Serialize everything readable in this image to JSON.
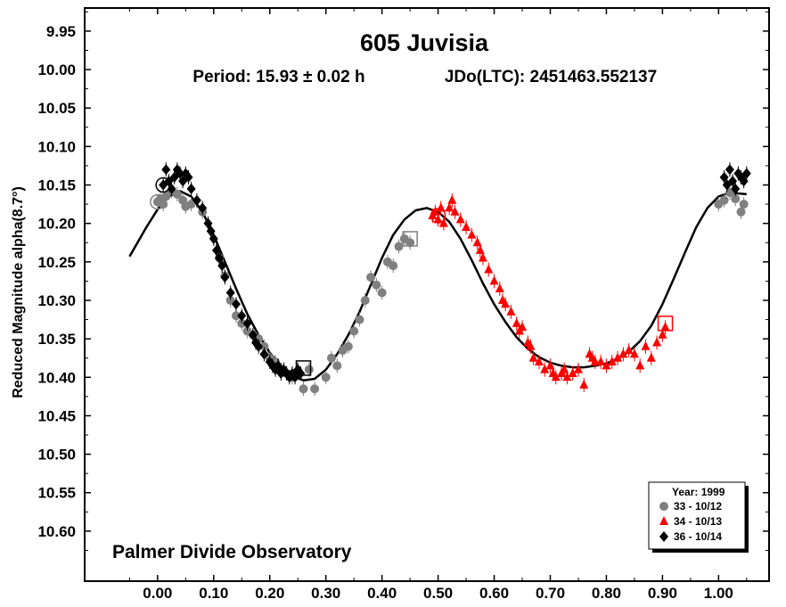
{
  "chart_data": {
    "type": "scatter",
    "title": "605 Juvisia",
    "subtitle_period": "Period: 15.93 ± 0.02 h",
    "subtitle_epoch": "JDo(LTC): 2451463.552137",
    "ylabel": "Reduced Magnitude alpha(8.7°)",
    "annotation": "Palmer Divide Observatory",
    "xlim": [
      -0.13,
      1.09
    ],
    "ylim": [
      9.92,
      10.665
    ],
    "y_inverted": true,
    "grid": false,
    "legend_placement": "bottom-right",
    "legend_title": "Year: 1999",
    "x_ticks": [
      "0.00",
      "0.10",
      "0.20",
      "0.30",
      "0.40",
      "0.50",
      "0.60",
      "0.70",
      "0.80",
      "0.90",
      "1.00"
    ],
    "x_tick_values": [
      0.0,
      0.1,
      0.2,
      0.3,
      0.4,
      0.5,
      0.6,
      0.7,
      0.8,
      0.9,
      1.0
    ],
    "y_ticks": [
      "9.95",
      "10.00",
      "10.05",
      "10.10",
      "10.15",
      "10.20",
      "10.25",
      "10.30",
      "10.35",
      "10.40",
      "10.45",
      "10.50",
      "10.55",
      "10.60"
    ],
    "y_tick_values": [
      9.95,
      10.0,
      10.05,
      10.1,
      10.15,
      10.2,
      10.25,
      10.3,
      10.35,
      10.4,
      10.45,
      10.5,
      10.55,
      10.6
    ],
    "fit_curve": {
      "x": [
        -0.05,
        -0.02,
        0.0,
        0.02,
        0.04,
        0.06,
        0.08,
        0.1,
        0.12,
        0.14,
        0.16,
        0.18,
        0.2,
        0.22,
        0.24,
        0.26,
        0.28,
        0.3,
        0.32,
        0.34,
        0.36,
        0.38,
        0.4,
        0.42,
        0.44,
        0.46,
        0.48,
        0.5,
        0.52,
        0.54,
        0.56,
        0.58,
        0.6,
        0.62,
        0.64,
        0.66,
        0.68,
        0.7,
        0.72,
        0.74,
        0.76,
        0.78,
        0.8,
        0.82,
        0.84,
        0.86,
        0.88,
        0.9,
        0.92,
        0.94,
        0.96,
        0.98,
        1.0,
        1.02,
        1.05
      ],
      "y": [
        10.243,
        10.205,
        10.182,
        10.165,
        10.158,
        10.165,
        10.185,
        10.215,
        10.25,
        10.285,
        10.318,
        10.345,
        10.368,
        10.385,
        10.398,
        10.404,
        10.402,
        10.39,
        10.37,
        10.345,
        10.315,
        10.28,
        10.245,
        10.215,
        10.195,
        10.183,
        10.18,
        10.185,
        10.198,
        10.22,
        10.248,
        10.278,
        10.305,
        10.328,
        10.348,
        10.363,
        10.374,
        10.381,
        10.385,
        10.387,
        10.387,
        10.385,
        10.382,
        10.376,
        10.367,
        10.353,
        10.333,
        10.305,
        10.272,
        10.238,
        10.205,
        10.18,
        10.165,
        10.16,
        10.162
      ]
    },
    "series": [
      {
        "name": "33 - 10/12",
        "color": "#808080",
        "marker": "circle",
        "x": [
          0.0,
          0.005,
          0.01,
          0.015,
          0.025,
          0.035,
          0.045,
          0.05,
          0.06,
          0.08,
          0.11,
          0.12,
          0.13,
          0.14,
          0.15,
          0.16,
          0.17,
          0.18,
          0.19,
          0.2,
          0.21,
          0.22,
          0.23,
          0.24,
          0.25,
          0.26,
          0.27,
          0.28,
          0.3,
          0.31,
          0.32,
          0.33,
          0.34,
          0.35,
          0.36,
          0.37,
          0.38,
          0.39,
          0.4,
          0.41,
          0.42,
          0.43,
          0.44,
          0.45,
          1.0,
          1.01,
          1.02,
          1.03,
          1.04,
          1.045
        ],
        "y": [
          10.172,
          10.168,
          10.175,
          10.165,
          10.158,
          10.162,
          10.17,
          10.178,
          10.175,
          10.185,
          10.245,
          10.268,
          10.3,
          10.32,
          10.33,
          10.34,
          10.345,
          10.35,
          10.36,
          10.375,
          10.38,
          10.39,
          10.395,
          10.4,
          10.395,
          10.415,
          10.39,
          10.415,
          10.4,
          10.375,
          10.385,
          10.365,
          10.36,
          10.34,
          10.325,
          10.3,
          10.27,
          10.28,
          10.29,
          10.25,
          10.255,
          10.23,
          10.22,
          10.225,
          10.175,
          10.17,
          10.16,
          10.168,
          10.185,
          10.175
        ]
      },
      {
        "name": "34 - 10/13",
        "color": "#ff0000",
        "marker": "triangle",
        "x": [
          0.49,
          0.495,
          0.5,
          0.505,
          0.51,
          0.52,
          0.525,
          0.53,
          0.54,
          0.55,
          0.56,
          0.57,
          0.575,
          0.58,
          0.59,
          0.6,
          0.61,
          0.615,
          0.62,
          0.63,
          0.64,
          0.645,
          0.65,
          0.66,
          0.665,
          0.67,
          0.68,
          0.69,
          0.7,
          0.705,
          0.71,
          0.72,
          0.725,
          0.73,
          0.74,
          0.75,
          0.76,
          0.77,
          0.775,
          0.78,
          0.79,
          0.8,
          0.81,
          0.82,
          0.83,
          0.84,
          0.85,
          0.86,
          0.87,
          0.88,
          0.89,
          0.9,
          0.905
        ],
        "y": [
          10.19,
          10.185,
          10.195,
          10.18,
          10.2,
          10.18,
          10.17,
          10.185,
          10.195,
          10.205,
          10.215,
          10.225,
          10.235,
          10.245,
          10.26,
          10.275,
          10.285,
          10.3,
          10.305,
          10.315,
          10.33,
          10.34,
          10.335,
          10.355,
          10.36,
          10.375,
          10.38,
          10.39,
          10.385,
          10.395,
          10.4,
          10.395,
          10.39,
          10.4,
          10.395,
          10.39,
          10.41,
          10.37,
          10.375,
          10.38,
          10.38,
          10.385,
          10.38,
          10.375,
          10.37,
          10.365,
          10.37,
          10.385,
          10.36,
          10.375,
          10.355,
          10.345,
          10.335
        ]
      },
      {
        "name": "36 - 10/14",
        "color": "#000000",
        "marker": "diamond",
        "x": [
          0.01,
          0.015,
          0.02,
          0.025,
          0.03,
          0.035,
          0.04,
          0.045,
          0.05,
          0.055,
          0.06,
          0.07,
          0.08,
          0.09,
          0.095,
          0.1,
          0.105,
          0.11,
          0.115,
          0.12,
          0.13,
          0.14,
          0.15,
          0.16,
          0.17,
          0.175,
          0.18,
          0.19,
          0.2,
          0.205,
          0.21,
          0.215,
          0.22,
          0.225,
          0.23,
          0.235,
          0.24,
          0.245,
          0.25,
          0.255,
          1.01,
          1.015,
          1.02,
          1.025,
          1.03,
          1.035,
          1.04,
          1.045,
          1.05
        ],
        "y": [
          10.15,
          10.13,
          10.145,
          10.155,
          10.14,
          10.13,
          10.135,
          10.145,
          10.135,
          10.14,
          10.155,
          10.17,
          10.18,
          10.2,
          10.21,
          10.22,
          10.235,
          10.245,
          10.255,
          10.27,
          10.29,
          10.305,
          10.32,
          10.33,
          10.345,
          10.355,
          10.36,
          10.37,
          10.38,
          10.385,
          10.39,
          10.385,
          10.395,
          10.39,
          10.395,
          10.4,
          10.395,
          10.4,
          10.39,
          10.395,
          10.14,
          10.15,
          10.13,
          10.145,
          10.155,
          10.135,
          10.14,
          10.145,
          10.135
        ]
      }
    ],
    "open_markers": [
      {
        "x": 0.0,
        "y": 10.172,
        "shape": "circle",
        "color": "#808080"
      },
      {
        "x": 0.01,
        "y": 10.15,
        "shape": "circle",
        "color": "#000000"
      },
      {
        "x": 0.45,
        "y": 10.22,
        "shape": "square",
        "color": "#808080"
      },
      {
        "x": 0.5,
        "y": 10.19,
        "shape": "circle",
        "color": "#ff0000"
      },
      {
        "x": 0.26,
        "y": 10.388,
        "shape": "square",
        "color": "#000000"
      },
      {
        "x": 0.905,
        "y": 10.33,
        "shape": "square",
        "color": "#ff0000"
      }
    ]
  }
}
